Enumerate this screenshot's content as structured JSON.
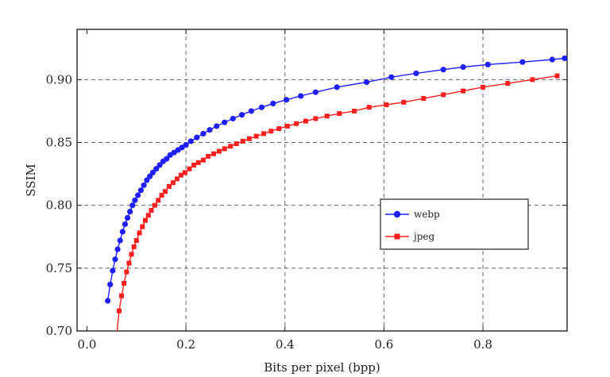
{
  "chart_data": {
    "type": "line",
    "xlabel": "Bits per pixel (bpp)",
    "ylabel": "SSIM",
    "xlim": [
      -0.02,
      0.97
    ],
    "ylim": [
      0.7,
      0.94
    ],
    "grid": true,
    "legend_position": "lower-right",
    "x_ticks": [
      {
        "value": 0.0,
        "label": "0.0"
      },
      {
        "value": 0.2,
        "label": "0.2"
      },
      {
        "value": 0.4,
        "label": "0.4"
      },
      {
        "value": 0.6,
        "label": "0.6"
      },
      {
        "value": 0.8,
        "label": "0.8"
      }
    ],
    "y_ticks": [
      {
        "value": 0.7,
        "label": "0.70"
      },
      {
        "value": 0.75,
        "label": "0.75"
      },
      {
        "value": 0.8,
        "label": "0.80"
      },
      {
        "value": 0.85,
        "label": "0.85"
      },
      {
        "value": 0.9,
        "label": "0.90"
      }
    ],
    "series": [
      {
        "name": "webp",
        "color": "#1f1fff",
        "marker": "circle",
        "x": [
          0.042,
          0.047,
          0.052,
          0.057,
          0.062,
          0.067,
          0.072,
          0.077,
          0.082,
          0.087,
          0.092,
          0.097,
          0.103,
          0.109,
          0.115,
          0.121,
          0.127,
          0.133,
          0.14,
          0.147,
          0.154,
          0.161,
          0.168,
          0.176,
          0.184,
          0.192,
          0.2,
          0.21,
          0.222,
          0.235,
          0.248,
          0.262,
          0.278,
          0.295,
          0.313,
          0.332,
          0.353,
          0.376,
          0.403,
          0.432,
          0.462,
          0.505,
          0.565,
          0.615,
          0.665,
          0.72,
          0.76,
          0.81,
          0.88,
          0.94,
          0.965
        ],
        "y": [
          0.724,
          0.737,
          0.748,
          0.757,
          0.765,
          0.772,
          0.779,
          0.785,
          0.79,
          0.795,
          0.8,
          0.804,
          0.808,
          0.812,
          0.816,
          0.82,
          0.823,
          0.826,
          0.829,
          0.832,
          0.835,
          0.837,
          0.84,
          0.842,
          0.844,
          0.846,
          0.848,
          0.851,
          0.854,
          0.857,
          0.86,
          0.863,
          0.866,
          0.869,
          0.872,
          0.875,
          0.878,
          0.881,
          0.884,
          0.887,
          0.89,
          0.894,
          0.898,
          0.902,
          0.905,
          0.908,
          0.91,
          0.912,
          0.914,
          0.916,
          0.917
        ]
      },
      {
        "name": "jpeg",
        "color": "#ff1f1f",
        "marker": "square",
        "x": [
          0.06,
          0.065,
          0.07,
          0.075,
          0.08,
          0.085,
          0.09,
          0.095,
          0.1,
          0.106,
          0.112,
          0.118,
          0.124,
          0.13,
          0.137,
          0.144,
          0.151,
          0.158,
          0.166,
          0.174,
          0.182,
          0.19,
          0.198,
          0.207,
          0.216,
          0.225,
          0.235,
          0.245,
          0.256,
          0.267,
          0.278,
          0.29,
          0.302,
          0.315,
          0.328,
          0.342,
          0.357,
          0.372,
          0.388,
          0.405,
          0.423,
          0.442,
          0.462,
          0.485,
          0.51,
          0.54,
          0.57,
          0.605,
          0.64,
          0.68,
          0.72,
          0.76,
          0.8,
          0.85,
          0.9,
          0.95
        ],
        "y": [
          0.697,
          0.716,
          0.728,
          0.738,
          0.747,
          0.754,
          0.761,
          0.767,
          0.772,
          0.778,
          0.783,
          0.788,
          0.792,
          0.796,
          0.8,
          0.804,
          0.808,
          0.811,
          0.815,
          0.818,
          0.821,
          0.824,
          0.826,
          0.829,
          0.832,
          0.834,
          0.836,
          0.839,
          0.841,
          0.843,
          0.845,
          0.847,
          0.849,
          0.851,
          0.853,
          0.855,
          0.857,
          0.859,
          0.861,
          0.863,
          0.865,
          0.867,
          0.869,
          0.871,
          0.873,
          0.875,
          0.878,
          0.88,
          0.882,
          0.885,
          0.888,
          0.891,
          0.894,
          0.897,
          0.9,
          0.903
        ]
      }
    ]
  }
}
